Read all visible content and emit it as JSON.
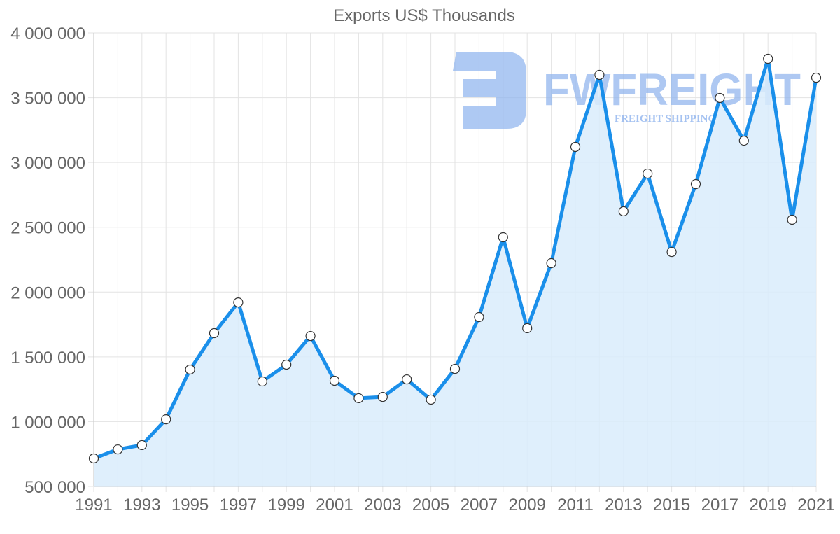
{
  "chart_data": {
    "type": "area",
    "title": "Exports US$ Thousands",
    "xlabel": "",
    "ylabel": "",
    "x": [
      1991,
      1992,
      1993,
      1994,
      1995,
      1996,
      1997,
      1998,
      1999,
      2000,
      2001,
      2002,
      2003,
      2004,
      2005,
      2006,
      2007,
      2008,
      2009,
      2010,
      2011,
      2012,
      2013,
      2014,
      2015,
      2016,
      2017,
      2018,
      2019,
      2020,
      2021
    ],
    "series": [
      {
        "name": "Exports US$ Thousands",
        "values": [
          716000,
          786000,
          819000,
          1018000,
          1402000,
          1683000,
          1920000,
          1310000,
          1440000,
          1661000,
          1316000,
          1181000,
          1191000,
          1326000,
          1170000,
          1407000,
          1807000,
          2423000,
          1721000,
          2223000,
          3120000,
          3676000,
          2623000,
          2914000,
          2309000,
          2833000,
          3498000,
          3168000,
          3800000,
          2558000,
          3654000
        ]
      }
    ],
    "x_tick_labels": [
      "1991",
      "1993",
      "1995",
      "1997",
      "1999",
      "2001",
      "2003",
      "2005",
      "2007",
      "2009",
      "2011",
      "2013",
      "2015",
      "2017",
      "2019",
      "2021"
    ],
    "y_tick_labels": [
      "4 000 000",
      "3 500 000",
      "3 000 000",
      "2 500 000",
      "2 000 000",
      "1 500 000",
      "1 000 000",
      "500 000"
    ],
    "y_ticks": [
      4000000,
      3500000,
      3000000,
      2500000,
      2000000,
      1500000,
      1000000,
      500000
    ],
    "ylim": [
      500000,
      4000000
    ],
    "xlim": [
      1991,
      2021
    ],
    "grid": true,
    "legend": "none",
    "colors": {
      "line": "#1a8fea",
      "fill": "#d9ecfc",
      "point_fill": "#ffffff",
      "point_stroke": "#333333",
      "grid": "#e3e3e3",
      "text": "#666666"
    }
  },
  "watermark": {
    "brand": "FWFREIGHT",
    "tagline": "FREIGHT SHIPPING"
  }
}
